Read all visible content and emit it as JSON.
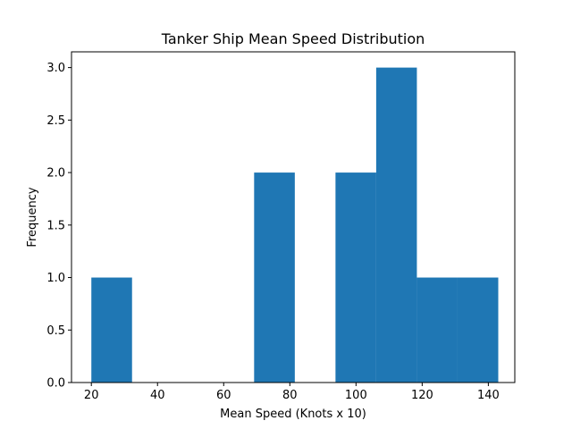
{
  "chart_data": {
    "type": "bar",
    "title": "Tanker Ship Mean Speed Distribution",
    "xlabel": "Mean Speed (Knots x 10)",
    "ylabel": "Frequency",
    "xlim": [
      14,
      148
    ],
    "ylim": [
      0,
      3.15
    ],
    "xticks": [
      20,
      40,
      60,
      80,
      100,
      120,
      140
    ],
    "yticks": [
      0.0,
      0.5,
      1.0,
      1.5,
      2.0,
      2.5,
      3.0
    ],
    "xtick_labels": [
      "20",
      "40",
      "60",
      "80",
      "100",
      "120",
      "140"
    ],
    "ytick_labels": [
      "0.0",
      "0.5",
      "1.0",
      "1.5",
      "2.0",
      "2.5",
      "3.0"
    ],
    "bin_edges": [
      20,
      32.3,
      44.6,
      56.9,
      69.2,
      81.5,
      93.8,
      106.1,
      118.4,
      130.7,
      143
    ],
    "values": [
      1,
      0,
      0,
      0,
      2,
      0,
      2,
      3,
      1,
      1
    ],
    "grid": false,
    "legend": "none",
    "bar_color": "#1f77b4"
  }
}
